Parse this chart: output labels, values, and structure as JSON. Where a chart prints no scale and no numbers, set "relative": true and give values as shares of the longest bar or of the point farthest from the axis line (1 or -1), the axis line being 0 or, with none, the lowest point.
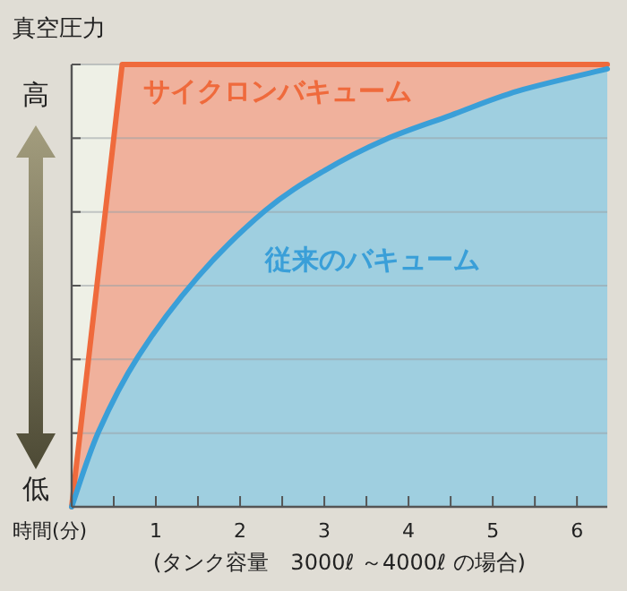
{
  "chart_data": {
    "type": "area",
    "title": "真空圧力",
    "xlabel": "時間(分)",
    "annotations": [
      "(タンク容量　3000ℓ ～4000ℓ の場合)",
      "高",
      "低"
    ],
    "relative": true,
    "grid": "y",
    "xlim": [
      0,
      6.36
    ],
    "xticks": [
      {
        "value": 0.5,
        "label": null
      },
      1,
      {
        "value": 1.5,
        "label": null
      },
      2,
      {
        "value": 2.5,
        "label": null
      },
      3,
      {
        "value": 3.5,
        "label": null
      },
      4,
      {
        "value": 4.5,
        "label": null
      },
      5,
      {
        "value": 5.5,
        "label": null
      },
      6
    ],
    "series": [
      {
        "name": "サイクロンバキューム",
        "color": "#ef6a3c",
        "x": [
          0,
          0.6,
          6.36
        ],
        "values": [
          0,
          1,
          1
        ]
      },
      {
        "name": "従来のバキューム",
        "color": "#3a9fd8",
        "x": [
          0,
          0.32,
          0.79,
          1.5,
          2.3,
          3,
          3.72,
          4.5,
          5.3,
          6.36
        ],
        "values": [
          0,
          0.17,
          0.34,
          0.52,
          0.67,
          0.76,
          0.83,
          0.885,
          0.94,
          0.99
        ]
      }
    ]
  }
}
